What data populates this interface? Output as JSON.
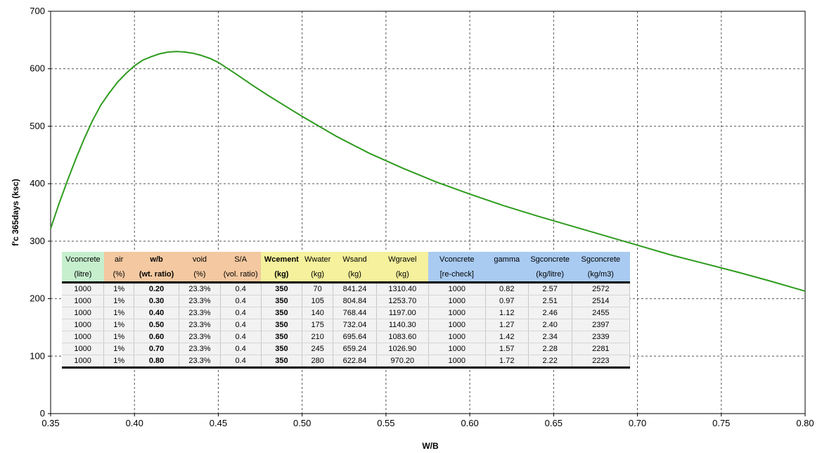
{
  "chart_data": {
    "type": "line",
    "title": "",
    "xlabel": "W/B",
    "ylabel": "f'c 365days (ksc)",
    "xlim": [
      0.35,
      0.8
    ],
    "ylim": [
      0,
      700
    ],
    "x_ticks": [
      "0.35",
      "0.40",
      "0.45",
      "0.50",
      "0.55",
      "0.60",
      "0.65",
      "0.70",
      "0.75",
      "0.80"
    ],
    "y_ticks": [
      "0",
      "100",
      "200",
      "300",
      "400",
      "500",
      "600",
      "700"
    ],
    "grid": true,
    "legend": "none",
    "line_color": "#2e9b1e",
    "series": [
      {
        "x": [
          0.35,
          0.355,
          0.36,
          0.365,
          0.37,
          0.375,
          0.38,
          0.385,
          0.39,
          0.395,
          0.4,
          0.405,
          0.41,
          0.415,
          0.42,
          0.425,
          0.43,
          0.435,
          0.44,
          0.445,
          0.45,
          0.46,
          0.47,
          0.48,
          0.49,
          0.5,
          0.52,
          0.54,
          0.56,
          0.58,
          0.6,
          0.62,
          0.64,
          0.66,
          0.68,
          0.7,
          0.72,
          0.74,
          0.76,
          0.78,
          0.8
        ],
        "values": [
          322,
          365,
          405,
          443,
          478,
          510,
          537,
          558,
          577,
          592,
          605,
          615,
          621,
          626,
          629,
          630,
          629,
          627,
          623,
          618,
          611,
          592,
          572,
          553,
          535,
          517,
          483,
          453,
          427,
          403,
          382,
          362,
          344,
          327,
          310,
          293,
          276,
          261,
          246,
          230,
          213
        ]
      }
    ]
  },
  "table": {
    "groups": [
      {
        "label": "Vconcrete",
        "unit": "(litre)",
        "color": "green",
        "bold": false
      },
      {
        "label": "air",
        "unit": "(%)",
        "color": "orange",
        "bold": false
      },
      {
        "label": "w/b",
        "unit": "(wt. ratio)",
        "color": "orange",
        "bold": true
      },
      {
        "label": "void",
        "unit": "(%)",
        "color": "orange",
        "bold": false
      },
      {
        "label": "S/A",
        "unit": "(vol. ratio)",
        "color": "orange",
        "bold": false
      },
      {
        "label": "Wcement",
        "unit": "(kg)",
        "color": "yellow",
        "bold": true
      },
      {
        "label": "Wwater",
        "unit": "(kg)",
        "color": "yellow",
        "bold": false
      },
      {
        "label": "Wsand",
        "unit": "(kg)",
        "color": "yellow",
        "bold": false
      },
      {
        "label": "Wgravel",
        "unit": "(kg)",
        "color": "yellow",
        "bold": false
      },
      {
        "label": "Vconcrete",
        "unit": "[re-check]",
        "color": "blue",
        "bold": false
      },
      {
        "label": "gamma",
        "unit": "",
        "color": "blue",
        "bold": false
      },
      {
        "label": "Sgconcrete",
        "unit": "(kg/litre)",
        "color": "blue",
        "bold": false
      },
      {
        "label": "Sgconcrete",
        "unit": "(kg/m3)",
        "color": "blue",
        "bold": false
      }
    ],
    "rows": [
      [
        "1000",
        "1%",
        "0.20",
        "23.3%",
        "0.4",
        "350",
        "70",
        "841.24",
        "1310.40",
        "1000",
        "0.82",
        "2.57",
        "2572"
      ],
      [
        "1000",
        "1%",
        "0.30",
        "23.3%",
        "0.4",
        "350",
        "105",
        "804.84",
        "1253.70",
        "1000",
        "0.97",
        "2.51",
        "2514"
      ],
      [
        "1000",
        "1%",
        "0.40",
        "23.3%",
        "0.4",
        "350",
        "140",
        "768.44",
        "1197.00",
        "1000",
        "1.12",
        "2.46",
        "2455"
      ],
      [
        "1000",
        "1%",
        "0.50",
        "23.3%",
        "0.4",
        "350",
        "175",
        "732.04",
        "1140.30",
        "1000",
        "1.27",
        "2.40",
        "2397"
      ],
      [
        "1000",
        "1%",
        "0.60",
        "23.3%",
        "0.4",
        "350",
        "210",
        "695.64",
        "1083.60",
        "1000",
        "1.42",
        "2.34",
        "2339"
      ],
      [
        "1000",
        "1%",
        "0.70",
        "23.3%",
        "0.4",
        "350",
        "245",
        "659.24",
        "1026.90",
        "1000",
        "1.57",
        "2.28",
        "2281"
      ],
      [
        "1000",
        "1%",
        "0.80",
        "23.3%",
        "0.4",
        "350",
        "280",
        "622.84",
        "970.20",
        "1000",
        "1.72",
        "2.22",
        "2223"
      ]
    ]
  }
}
